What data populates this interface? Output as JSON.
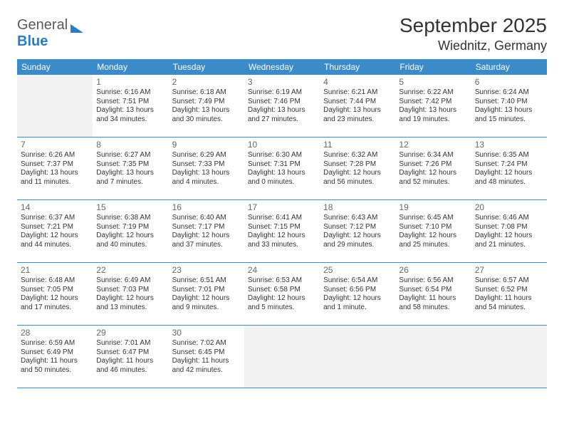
{
  "brand": {
    "part1": "General",
    "part2": "Blue"
  },
  "title": {
    "month": "September 2025",
    "location": "Wiednitz, Germany"
  },
  "colors": {
    "header_bg": "#3b8bc9",
    "header_text": "#ffffff",
    "cell_border": "#3b8bc9",
    "blank_bg": "#f2f2f2",
    "text": "#333333",
    "daynum": "#666666"
  },
  "weekdays": [
    "Sunday",
    "Monday",
    "Tuesday",
    "Wednesday",
    "Thursday",
    "Friday",
    "Saturday"
  ],
  "layout": {
    "rows": 6,
    "cols": 7,
    "start_col": 1,
    "num_days": 30
  },
  "days": {
    "1": {
      "sunrise": "6:16 AM",
      "sunset": "7:51 PM",
      "daylight": "13 hours and 34 minutes."
    },
    "2": {
      "sunrise": "6:18 AM",
      "sunset": "7:49 PM",
      "daylight": "13 hours and 30 minutes."
    },
    "3": {
      "sunrise": "6:19 AM",
      "sunset": "7:46 PM",
      "daylight": "13 hours and 27 minutes."
    },
    "4": {
      "sunrise": "6:21 AM",
      "sunset": "7:44 PM",
      "daylight": "13 hours and 23 minutes."
    },
    "5": {
      "sunrise": "6:22 AM",
      "sunset": "7:42 PM",
      "daylight": "13 hours and 19 minutes."
    },
    "6": {
      "sunrise": "6:24 AM",
      "sunset": "7:40 PM",
      "daylight": "13 hours and 15 minutes."
    },
    "7": {
      "sunrise": "6:26 AM",
      "sunset": "7:37 PM",
      "daylight": "13 hours and 11 minutes."
    },
    "8": {
      "sunrise": "6:27 AM",
      "sunset": "7:35 PM",
      "daylight": "13 hours and 7 minutes."
    },
    "9": {
      "sunrise": "6:29 AM",
      "sunset": "7:33 PM",
      "daylight": "13 hours and 4 minutes."
    },
    "10": {
      "sunrise": "6:30 AM",
      "sunset": "7:31 PM",
      "daylight": "13 hours and 0 minutes."
    },
    "11": {
      "sunrise": "6:32 AM",
      "sunset": "7:28 PM",
      "daylight": "12 hours and 56 minutes."
    },
    "12": {
      "sunrise": "6:34 AM",
      "sunset": "7:26 PM",
      "daylight": "12 hours and 52 minutes."
    },
    "13": {
      "sunrise": "6:35 AM",
      "sunset": "7:24 PM",
      "daylight": "12 hours and 48 minutes."
    },
    "14": {
      "sunrise": "6:37 AM",
      "sunset": "7:21 PM",
      "daylight": "12 hours and 44 minutes."
    },
    "15": {
      "sunrise": "6:38 AM",
      "sunset": "7:19 PM",
      "daylight": "12 hours and 40 minutes."
    },
    "16": {
      "sunrise": "6:40 AM",
      "sunset": "7:17 PM",
      "daylight": "12 hours and 37 minutes."
    },
    "17": {
      "sunrise": "6:41 AM",
      "sunset": "7:15 PM",
      "daylight": "12 hours and 33 minutes."
    },
    "18": {
      "sunrise": "6:43 AM",
      "sunset": "7:12 PM",
      "daylight": "12 hours and 29 minutes."
    },
    "19": {
      "sunrise": "6:45 AM",
      "sunset": "7:10 PM",
      "daylight": "12 hours and 25 minutes."
    },
    "20": {
      "sunrise": "6:46 AM",
      "sunset": "7:08 PM",
      "daylight": "12 hours and 21 minutes."
    },
    "21": {
      "sunrise": "6:48 AM",
      "sunset": "7:05 PM",
      "daylight": "12 hours and 17 minutes."
    },
    "22": {
      "sunrise": "6:49 AM",
      "sunset": "7:03 PM",
      "daylight": "12 hours and 13 minutes."
    },
    "23": {
      "sunrise": "6:51 AM",
      "sunset": "7:01 PM",
      "daylight": "12 hours and 9 minutes."
    },
    "24": {
      "sunrise": "6:53 AM",
      "sunset": "6:58 PM",
      "daylight": "12 hours and 5 minutes."
    },
    "25": {
      "sunrise": "6:54 AM",
      "sunset": "6:56 PM",
      "daylight": "12 hours and 1 minute."
    },
    "26": {
      "sunrise": "6:56 AM",
      "sunset": "6:54 PM",
      "daylight": "11 hours and 58 minutes."
    },
    "27": {
      "sunrise": "6:57 AM",
      "sunset": "6:52 PM",
      "daylight": "11 hours and 54 minutes."
    },
    "28": {
      "sunrise": "6:59 AM",
      "sunset": "6:49 PM",
      "daylight": "11 hours and 50 minutes."
    },
    "29": {
      "sunrise": "7:01 AM",
      "sunset": "6:47 PM",
      "daylight": "11 hours and 46 minutes."
    },
    "30": {
      "sunrise": "7:02 AM",
      "sunset": "6:45 PM",
      "daylight": "11 hours and 42 minutes."
    }
  },
  "labels": {
    "sunrise": "Sunrise: ",
    "sunset": "Sunset: ",
    "daylight": "Daylight: "
  }
}
